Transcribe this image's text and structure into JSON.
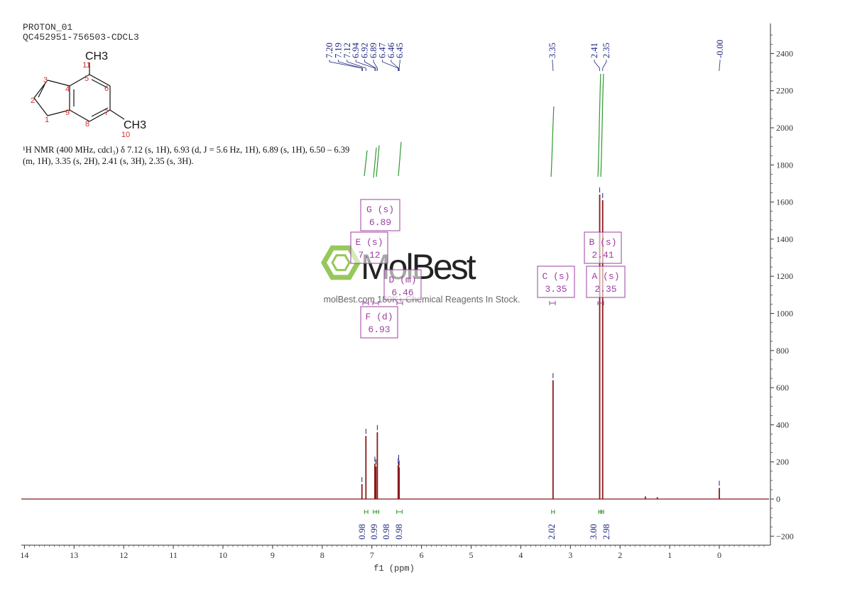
{
  "header": {
    "line1": "PROTON_01",
    "line2": "QC452951-756503-CDCL3"
  },
  "structure": {
    "ch3_top": "CH3",
    "ch3_bottom": "CH3",
    "atom_numbers": [
      "1",
      "2",
      "3",
      "4",
      "5",
      "6",
      "7",
      "8",
      "9",
      "10",
      "11"
    ]
  },
  "description": {
    "line1": "¹H NMR (400 MHz, cdcl₃) δ 7.12 (s, 1H), 6.93 (d, J = 5.6 Hz, 1H), 6.89 (s, 1H), 6.50 – 6.39",
    "line2": "(m, 1H), 3.35 (s, 2H), 2.41 (s, 3H), 2.35 (s, 3H)."
  },
  "watermark": {
    "brand": "MolBest",
    "tagline": "molBest.com 180K+ Chemical Reagents In Stock."
  },
  "colors": {
    "spectrum": "#8b1a1a",
    "integral": "#2e9a2e",
    "peak_label": "#1a237e",
    "multiplet_box": "#9c3fa0",
    "axis": "#333333",
    "structure_number": "#d32f2f"
  },
  "chart_data": {
    "type": "line",
    "xlabel": "f1 (ppm)",
    "x_ticks": [
      14,
      13,
      12,
      11,
      10,
      9,
      8,
      7,
      6,
      5,
      4,
      3,
      2,
      1,
      0
    ],
    "xlim": [
      14.05,
      -1.0
    ],
    "x_reversed": true,
    "ylim": [
      -250,
      2500
    ],
    "y_ticks": [
      -200,
      0,
      200,
      400,
      600,
      800,
      1000,
      1200,
      1400,
      1600,
      1800,
      2000,
      2200,
      2400
    ],
    "y_axis_position": "right",
    "peaks": [
      {
        "ppm": 7.2,
        "height": 80
      },
      {
        "ppm": 7.12,
        "height": 340
      },
      {
        "ppm": 6.94,
        "height": 190
      },
      {
        "ppm": 6.92,
        "height": 175
      },
      {
        "ppm": 6.89,
        "height": 360
      },
      {
        "ppm": 6.47,
        "height": 180
      },
      {
        "ppm": 6.46,
        "height": 200
      },
      {
        "ppm": 6.45,
        "height": 170
      },
      {
        "ppm": 3.35,
        "height": 640
      },
      {
        "ppm": 2.41,
        "height": 1640
      },
      {
        "ppm": 2.35,
        "height": 1610
      },
      {
        "ppm": 1.49,
        "height": 14
      },
      {
        "ppm": 1.25,
        "height": 10
      },
      {
        "ppm": 0.0,
        "height": 60
      }
    ],
    "peak_labels_group1": [
      "7.20",
      "7.19",
      "7.12",
      "6.94",
      "6.92",
      "6.89",
      "6.47",
      "6.46",
      "6.45"
    ],
    "peak_labels_group2": [
      "3.35"
    ],
    "peak_labels_group3": [
      "2.41",
      "2.35"
    ],
    "peak_labels_group4": [
      "-0.00"
    ],
    "integrals": [
      {
        "from": 7.15,
        "to": 7.08,
        "value": "0.98"
      },
      {
        "from": 6.97,
        "to": 6.91,
        "value": "0.99"
      },
      {
        "from": 6.91,
        "to": 6.86,
        "value": "0.98"
      },
      {
        "from": 6.5,
        "to": 6.39,
        "value": "0.98"
      },
      {
        "from": 3.38,
        "to": 3.32,
        "value": "2.02"
      },
      {
        "from": 2.43,
        "to": 2.39,
        "value": "3.00"
      },
      {
        "from": 2.37,
        "to": 2.33,
        "value": "2.98"
      }
    ],
    "multiplets": [
      {
        "label": "G (s)",
        "value": "6.89",
        "ppm": 6.89
      },
      {
        "label": "E (s)",
        "value": "7.12",
        "ppm": 7.12
      },
      {
        "label": "D (m)",
        "value": "6.46",
        "ppm": 6.46
      },
      {
        "label": "F (d)",
        "value": "6.93",
        "ppm": 6.93
      },
      {
        "label": "C (s)",
        "value": "3.35",
        "ppm": 3.35
      },
      {
        "label": "B (s)",
        "value": "2.41",
        "ppm": 2.41
      },
      {
        "label": "A (s)",
        "value": "2.35",
        "ppm": 2.35
      }
    ]
  }
}
